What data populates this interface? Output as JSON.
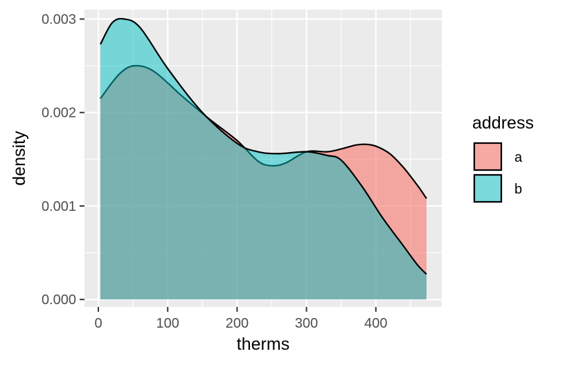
{
  "chart_data": {
    "type": "area",
    "title": "",
    "xlabel": "therms",
    "ylabel": "density",
    "xlim": [
      -20,
      495
    ],
    "ylim": [
      -8e-05,
      0.0031
    ],
    "x_ticks": [
      0,
      100,
      200,
      300,
      400
    ],
    "x_tick_labels": [
      "0",
      "100",
      "200",
      "300",
      "400"
    ],
    "x_minor_ticks": [
      50,
      150,
      250,
      350,
      450
    ],
    "y_ticks": [
      0,
      0.001,
      0.002,
      0.003
    ],
    "y_tick_labels": [
      "0.000",
      "0.001",
      "0.002",
      "0.003"
    ],
    "y_minor_ticks": [
      0.0005,
      0.0015,
      0.0025
    ],
    "grid": true,
    "legend": {
      "title": "address",
      "position": "right"
    },
    "series": [
      {
        "name": "a",
        "color": "#F8766D",
        "opacity": 0.6,
        "x": [
          3,
          30,
          52,
          80,
          120,
          160,
          200,
          230,
          250,
          270,
          300,
          330,
          350,
          370,
          385,
          400,
          420,
          440,
          460,
          473
        ],
        "y": [
          0.00215,
          0.00241,
          0.0025,
          0.00244,
          0.00218,
          0.00193,
          0.0017,
          0.00148,
          0.00143,
          0.00146,
          0.00158,
          0.00158,
          0.00161,
          0.00165,
          0.00166,
          0.00164,
          0.00156,
          0.00141,
          0.00122,
          0.00108
        ]
      },
      {
        "name": "b",
        "color": "#00BFC4",
        "opacity": 0.5,
        "x": [
          3,
          20,
          37,
          60,
          100,
          150,
          200,
          230,
          260,
          300,
          330,
          350,
          380,
          410,
          440,
          460,
          473
        ],
        "y": [
          0.00273,
          0.00296,
          0.003,
          0.00291,
          0.00247,
          0.002,
          0.00167,
          0.00158,
          0.00156,
          0.00158,
          0.00154,
          0.00149,
          0.00121,
          0.00087,
          0.00057,
          0.00037,
          0.00027
        ]
      }
    ]
  }
}
